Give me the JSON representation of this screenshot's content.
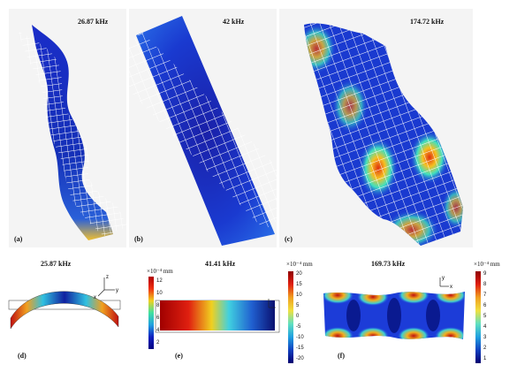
{
  "top_panels": [
    {
      "frequency": "26.87 kHz",
      "label": "(a)"
    },
    {
      "frequency": "42 kHz",
      "label": "(b)"
    },
    {
      "frequency": "174.72 kHz",
      "label": "(c)"
    }
  ],
  "bottom_panels": [
    {
      "frequency": "25.87 kHz",
      "label": "(d)",
      "colorbar": {
        "multiplier": "×10⁻⁴",
        "unit": "mm",
        "ticks": [
          "12",
          "10",
          "8",
          "6",
          "4",
          "2"
        ]
      }
    },
    {
      "frequency": "41.41 kHz",
      "label": "(e)",
      "colorbar": {
        "multiplier": "×10⁻⁴",
        "unit": "mm",
        "ticks": [
          "20",
          "15",
          "10",
          "5",
          "0",
          "-5",
          "-10",
          "-15",
          "-20"
        ]
      }
    },
    {
      "frequency": "169.73 kHz",
      "label": "(f)",
      "colorbar": {
        "multiplier": "×10⁻⁴",
        "unit": "mm",
        "ticks": [
          "9",
          "8",
          "7",
          "6",
          "5",
          "4",
          "3",
          "2",
          "1"
        ]
      }
    }
  ],
  "axis_letters": {
    "z": "z",
    "y": "y",
    "x": "x"
  }
}
